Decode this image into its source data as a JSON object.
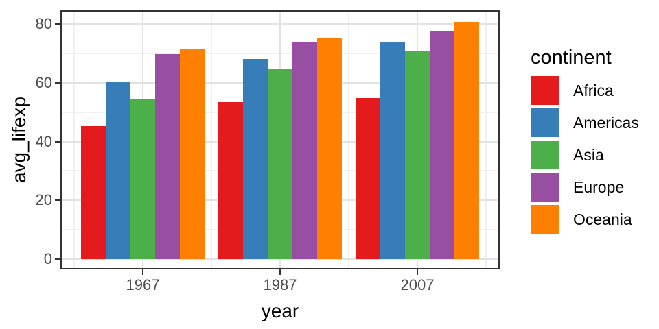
{
  "chart_data": {
    "type": "bar",
    "title": "",
    "xlabel": "year",
    "ylabel": "avg_lifexp",
    "categories": [
      "1967",
      "1987",
      "2007"
    ],
    "series": [
      {
        "name": "Africa",
        "color": "#e41a1c",
        "values": [
          45.33,
          53.34,
          54.81
        ]
      },
      {
        "name": "Americas",
        "color": "#377eb8",
        "values": [
          60.41,
          68.09,
          73.61
        ]
      },
      {
        "name": "Asia",
        "color": "#4daf4a",
        "values": [
          54.66,
          64.85,
          70.73
        ]
      },
      {
        "name": "Europe",
        "color": "#984ea3",
        "values": [
          69.74,
          73.64,
          77.65
        ]
      },
      {
        "name": "Oceania",
        "color": "#ff7f00",
        "values": [
          71.31,
          75.32,
          80.72
        ]
      }
    ],
    "ylim": [
      0,
      84.8
    ],
    "y_major_ticks": [
      0,
      20,
      40,
      60,
      80
    ],
    "y_minor_ticks": [
      10,
      30,
      50,
      70
    ],
    "y_tick_labels": [
      "0",
      "20",
      "40",
      "60",
      "80"
    ],
    "x_tick_labels": [
      "1967",
      "1987",
      "2007"
    ],
    "grid": true,
    "legend_position": "right"
  },
  "legend": {
    "title": "continent",
    "entries": [
      {
        "label": "Africa",
        "color": "#e41a1c"
      },
      {
        "label": "Americas",
        "color": "#377eb8"
      },
      {
        "label": "Asia",
        "color": "#4daf4a"
      },
      {
        "label": "Europe",
        "color": "#984ea3"
      },
      {
        "label": "Oceania",
        "color": "#ff7f00"
      }
    ]
  },
  "style_colors": {
    "panel_border": "#333333",
    "grid_major": "#e2e2e2",
    "grid_minor": "#f0f0f0",
    "axis_text": "#4d4d4d"
  }
}
